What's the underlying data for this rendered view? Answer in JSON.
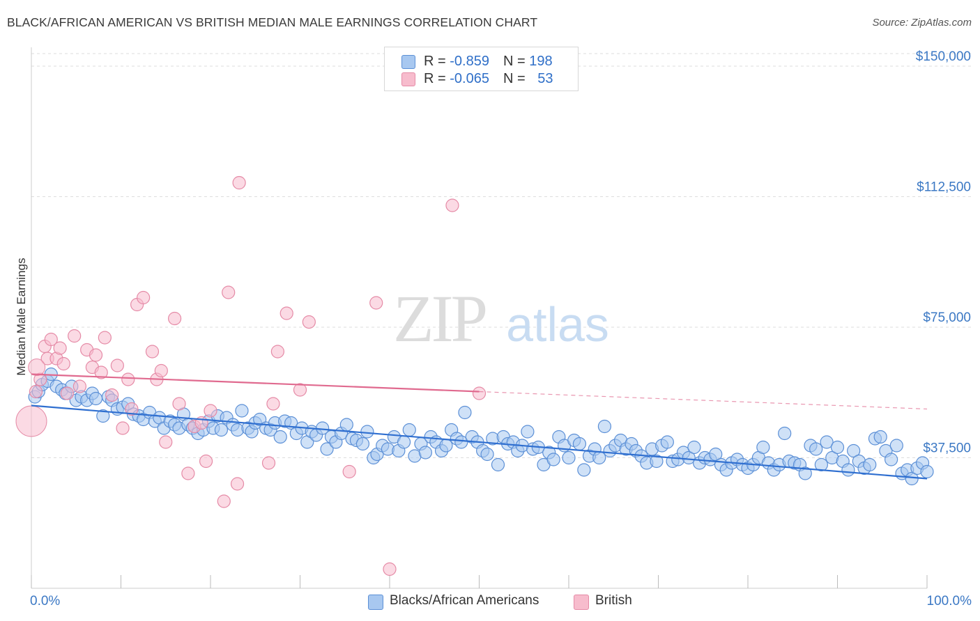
{
  "title": "BLACK/AFRICAN AMERICAN VS BRITISH MEDIAN MALE EARNINGS CORRELATION CHART",
  "source": "Source: ZipAtlas.com",
  "watermark": {
    "zip": "ZIP",
    "atlas": "atlas"
  },
  "legend": {
    "rows": [
      {
        "r_label": "R = ",
        "r_value": "-0.859",
        "n_label": "N = ",
        "n_value": "198",
        "color": "#a8c8f0",
        "stroke": "#5b8fd6"
      },
      {
        "r_label": "R = ",
        "r_value": "-0.065",
        "n_label": "N = ",
        "n_value": "53",
        "color": "#f7bccd",
        "stroke": "#e58aa6"
      }
    ]
  },
  "bottom_legend": [
    {
      "label": "Blacks/African Americans",
      "color": "#a8c8f0",
      "stroke": "#5b8fd6"
    },
    {
      "label": "British",
      "color": "#f7bccd",
      "stroke": "#e58aa6"
    }
  ],
  "chart_data": {
    "type": "scatter",
    "xlabel": "",
    "ylabel": "Median Male Earnings",
    "xlim": [
      0,
      100
    ],
    "ylim": [
      0,
      157000
    ],
    "x_tick_labels": {
      "left": "0.0%",
      "right": "100.0%"
    },
    "y_ticks": [
      {
        "value": 37500,
        "label": "$37,500"
      },
      {
        "value": 75000,
        "label": "$75,000"
      },
      {
        "value": 112500,
        "label": "$112,500"
      },
      {
        "value": 150000,
        "label": "$150,000"
      }
    ],
    "grid": "horizontal dashed",
    "series": [
      {
        "name": "Blacks/African Americans",
        "color": "#a8c8f0",
        "stroke": "#5b8fd6",
        "trend": {
          "x0": 0,
          "y0": 52500,
          "x1": 100,
          "y1": 31500,
          "color": "#2f6fd0"
        },
        "points": [
          [
            0.4,
            55000
          ],
          [
            0.8,
            56500
          ],
          [
            1.2,
            58500
          ],
          [
            1.8,
            59500
          ],
          [
            2.2,
            61500
          ],
          [
            2.8,
            58000
          ],
          [
            3.4,
            57000
          ],
          [
            3.8,
            56000
          ],
          [
            4.5,
            58000
          ],
          [
            5.0,
            54000
          ],
          [
            5.6,
            55000
          ],
          [
            6.2,
            54000
          ],
          [
            6.8,
            56000
          ],
          [
            7.2,
            54500
          ],
          [
            8.0,
            49500
          ],
          [
            8.6,
            55000
          ],
          [
            9.0,
            54000
          ],
          [
            9.6,
            51500
          ],
          [
            10.2,
            52000
          ],
          [
            10.8,
            53000
          ],
          [
            11.4,
            50000
          ],
          [
            12.0,
            49500
          ],
          [
            12.5,
            48500
          ],
          [
            13.2,
            50500
          ],
          [
            13.8,
            48000
          ],
          [
            14.3,
            49000
          ],
          [
            14.8,
            46000
          ],
          [
            15.5,
            48000
          ],
          [
            16.0,
            47000
          ],
          [
            16.5,
            46000
          ],
          [
            17.0,
            50000
          ],
          [
            17.5,
            47000
          ],
          [
            18.0,
            46000
          ],
          [
            18.6,
            44500
          ],
          [
            19.2,
            45500
          ],
          [
            19.8,
            48000
          ],
          [
            20.3,
            46000
          ],
          [
            20.8,
            49500
          ],
          [
            21.2,
            45500
          ],
          [
            21.8,
            49000
          ],
          [
            22.5,
            47000
          ],
          [
            23.0,
            45500
          ],
          [
            23.5,
            51000
          ],
          [
            24.2,
            46000
          ],
          [
            24.6,
            45000
          ],
          [
            25.0,
            47500
          ],
          [
            25.5,
            48500
          ],
          [
            26.2,
            46000
          ],
          [
            26.7,
            45500
          ],
          [
            27.2,
            47500
          ],
          [
            27.8,
            43500
          ],
          [
            28.3,
            48000
          ],
          [
            29.0,
            47500
          ],
          [
            29.6,
            44500
          ],
          [
            30.2,
            46000
          ],
          [
            30.8,
            42000
          ],
          [
            31.3,
            45000
          ],
          [
            31.8,
            44000
          ],
          [
            32.5,
            46000
          ],
          [
            33.0,
            40000
          ],
          [
            33.5,
            43500
          ],
          [
            34.0,
            42000
          ],
          [
            34.6,
            44500
          ],
          [
            35.2,
            47000
          ],
          [
            35.8,
            43000
          ],
          [
            36.3,
            42500
          ],
          [
            37.0,
            41500
          ],
          [
            37.5,
            45000
          ],
          [
            38.2,
            37500
          ],
          [
            38.6,
            38500
          ],
          [
            39.2,
            41000
          ],
          [
            39.8,
            40000
          ],
          [
            40.5,
            43500
          ],
          [
            41.0,
            39500
          ],
          [
            41.6,
            42000
          ],
          [
            42.2,
            45500
          ],
          [
            42.8,
            38000
          ],
          [
            43.5,
            41500
          ],
          [
            44.0,
            39000
          ],
          [
            44.6,
            43500
          ],
          [
            45.2,
            42000
          ],
          [
            45.8,
            39500
          ],
          [
            46.3,
            41000
          ],
          [
            46.9,
            45500
          ],
          [
            47.5,
            43000
          ],
          [
            48.0,
            42000
          ],
          [
            48.4,
            50500
          ],
          [
            49.2,
            43500
          ],
          [
            49.8,
            42000
          ],
          [
            50.4,
            39500
          ],
          [
            50.9,
            38500
          ],
          [
            51.5,
            43000
          ],
          [
            52.1,
            35500
          ],
          [
            52.7,
            43500
          ],
          [
            53.2,
            41500
          ],
          [
            53.8,
            42000
          ],
          [
            54.3,
            39500
          ],
          [
            54.8,
            41000
          ],
          [
            55.4,
            45000
          ],
          [
            56.0,
            40000
          ],
          [
            56.6,
            40500
          ],
          [
            57.2,
            35500
          ],
          [
            57.8,
            39000
          ],
          [
            58.3,
            37000
          ],
          [
            58.9,
            43500
          ],
          [
            59.5,
            41000
          ],
          [
            60.0,
            37500
          ],
          [
            60.6,
            42500
          ],
          [
            61.2,
            41500
          ],
          [
            61.7,
            34000
          ],
          [
            62.3,
            38000
          ],
          [
            62.9,
            40000
          ],
          [
            63.4,
            37500
          ],
          [
            64.0,
            46500
          ],
          [
            64.6,
            39500
          ],
          [
            65.2,
            41000
          ],
          [
            65.8,
            42500
          ],
          [
            66.4,
            40000
          ],
          [
            67.0,
            41500
          ],
          [
            67.5,
            39500
          ],
          [
            68.1,
            38000
          ],
          [
            68.7,
            36000
          ],
          [
            69.3,
            40000
          ],
          [
            69.8,
            36500
          ],
          [
            70.4,
            41000
          ],
          [
            71.0,
            42000
          ],
          [
            71.6,
            36500
          ],
          [
            72.2,
            37000
          ],
          [
            72.8,
            39000
          ],
          [
            73.4,
            37500
          ],
          [
            74.0,
            40500
          ],
          [
            74.6,
            36000
          ],
          [
            75.2,
            37500
          ],
          [
            75.8,
            37000
          ],
          [
            76.4,
            38500
          ],
          [
            77.0,
            35500
          ],
          [
            77.6,
            34000
          ],
          [
            78.2,
            36000
          ],
          [
            78.8,
            37000
          ],
          [
            79.4,
            35500
          ],
          [
            80.0,
            34500
          ],
          [
            80.6,
            35500
          ],
          [
            81.2,
            37500
          ],
          [
            81.7,
            40500
          ],
          [
            82.3,
            36000
          ],
          [
            82.9,
            34000
          ],
          [
            83.5,
            35500
          ],
          [
            84.1,
            44500
          ],
          [
            84.6,
            36500
          ],
          [
            85.2,
            36000
          ],
          [
            85.8,
            35500
          ],
          [
            86.4,
            33000
          ],
          [
            87.0,
            41000
          ],
          [
            87.6,
            40000
          ],
          [
            88.2,
            35500
          ],
          [
            88.8,
            42000
          ],
          [
            89.4,
            37500
          ],
          [
            90.0,
            40500
          ],
          [
            90.6,
            36500
          ],
          [
            91.2,
            34000
          ],
          [
            91.8,
            39500
          ],
          [
            92.4,
            36500
          ],
          [
            93.0,
            34500
          ],
          [
            93.6,
            35500
          ],
          [
            94.2,
            43000
          ],
          [
            94.8,
            43500
          ],
          [
            95.4,
            39500
          ],
          [
            96.0,
            37000
          ],
          [
            96.6,
            41000
          ],
          [
            97.2,
            33000
          ],
          [
            97.8,
            34000
          ],
          [
            98.3,
            31500
          ],
          [
            98.9,
            34500
          ],
          [
            99.5,
            36000
          ],
          [
            100.0,
            33500
          ]
        ]
      },
      {
        "name": "British",
        "color": "#f7bccd",
        "stroke": "#e58aa6",
        "trend": {
          "x0": 0,
          "y0": 61500,
          "x1": 50,
          "y1": 56500,
          "color": "#e06a8f",
          "dashed_to_x": 100,
          "dashed_to_y": 51500
        },
        "points": [
          [
            0.5,
            56500
          ],
          [
            1.0,
            60000
          ],
          [
            1.5,
            69500
          ],
          [
            1.8,
            66000
          ],
          [
            2.2,
            71500
          ],
          [
            2.8,
            66000
          ],
          [
            3.2,
            69000
          ],
          [
            3.6,
            64500
          ],
          [
            4.0,
            56000
          ],
          [
            4.8,
            72500
          ],
          [
            5.4,
            58000
          ],
          [
            6.2,
            68500
          ],
          [
            6.8,
            63500
          ],
          [
            7.2,
            67000
          ],
          [
            7.8,
            62000
          ],
          [
            8.2,
            72000
          ],
          [
            9.0,
            55500
          ],
          [
            9.6,
            64000
          ],
          [
            10.2,
            46000
          ],
          [
            10.8,
            60000
          ],
          [
            11.2,
            51500
          ],
          [
            11.8,
            81500
          ],
          [
            12.5,
            83500
          ],
          [
            13.5,
            68000
          ],
          [
            14.0,
            60000
          ],
          [
            14.5,
            62500
          ],
          [
            15.0,
            42000
          ],
          [
            16.0,
            77500
          ],
          [
            16.5,
            53000
          ],
          [
            17.5,
            33000
          ],
          [
            18.2,
            46500
          ],
          [
            19.0,
            47500
          ],
          [
            19.5,
            36500
          ],
          [
            20.0,
            51000
          ],
          [
            21.5,
            25000
          ],
          [
            22.0,
            85000
          ],
          [
            23.0,
            30000
          ],
          [
            23.2,
            116500
          ],
          [
            26.5,
            36000
          ],
          [
            27.0,
            53000
          ],
          [
            27.5,
            68000
          ],
          [
            28.5,
            79000
          ],
          [
            30.0,
            57000
          ],
          [
            31.0,
            76500
          ],
          [
            35.5,
            33500
          ],
          [
            38.5,
            82000
          ],
          [
            40.0,
            5500
          ],
          [
            47.0,
            110000
          ],
          [
            50.0,
            56000
          ]
        ]
      }
    ]
  }
}
